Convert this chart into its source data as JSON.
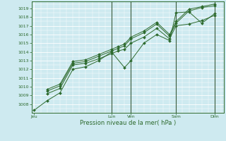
{
  "xlabel": "Pression niveau de la mer( hPa )",
  "ylim": [
    1007.0,
    1019.8
  ],
  "yticks": [
    1008,
    1009,
    1010,
    1011,
    1012,
    1013,
    1014,
    1015,
    1016,
    1017,
    1018,
    1019
  ],
  "background_color": "#ceeaf0",
  "grid_color": "#ffffff",
  "line_color": "#2d6a2d",
  "x_day_labels": [
    "Jeu",
    "Lun",
    "Ven",
    "Sam",
    "Dim"
  ],
  "x_day_positions": [
    0.0,
    3.0,
    3.75,
    5.5,
    7.0
  ],
  "series": [
    {
      "x": [
        0.0,
        0.5,
        1.0,
        1.5,
        2.0,
        2.5,
        3.0,
        3.5,
        3.75,
        4.25,
        4.75,
        5.25,
        5.5,
        6.0,
        6.5,
        7.0
      ],
      "y": [
        1007.3,
        1008.4,
        1009.3,
        1012.0,
        1012.3,
        1013.0,
        1014.0,
        1012.2,
        1013.0,
        1015.0,
        1016.0,
        1015.3,
        1018.5,
        1018.6,
        1017.3,
        1018.4
      ]
    },
    {
      "x": [
        0.5,
        1.0,
        1.5,
        2.0,
        2.5,
        3.0,
        3.25,
        3.5,
        3.75,
        4.25,
        4.75,
        5.25,
        5.5,
        6.0,
        6.5,
        7.0
      ],
      "y": [
        1009.2,
        1009.8,
        1012.5,
        1012.7,
        1013.2,
        1013.8,
        1014.1,
        1014.3,
        1015.0,
        1015.7,
        1016.7,
        1015.5,
        1017.0,
        1017.2,
        1017.6,
        1018.2
      ]
    },
    {
      "x": [
        0.5,
        1.0,
        1.5,
        2.0,
        2.5,
        3.0,
        3.25,
        3.5,
        3.75,
        4.25,
        4.75,
        5.25,
        5.5,
        6.0,
        6.5,
        7.0
      ],
      "y": [
        1009.5,
        1010.1,
        1012.7,
        1012.9,
        1013.5,
        1014.1,
        1014.4,
        1014.7,
        1015.5,
        1016.2,
        1017.2,
        1015.8,
        1017.3,
        1018.7,
        1019.1,
        1019.3
      ]
    },
    {
      "x": [
        0.5,
        1.0,
        1.5,
        2.0,
        2.5,
        3.0,
        3.25,
        3.5,
        3.75,
        4.25,
        4.75,
        5.25,
        5.5,
        6.0,
        6.5,
        7.0
      ],
      "y": [
        1009.7,
        1010.3,
        1012.9,
        1013.1,
        1013.7,
        1014.3,
        1014.6,
        1014.9,
        1015.7,
        1016.4,
        1017.4,
        1016.0,
        1017.5,
        1018.9,
        1019.2,
        1019.5
      ]
    }
  ],
  "x_vlines": [
    3.0,
    3.75,
    5.5,
    7.0
  ],
  "xlim": [
    -0.1,
    7.35
  ],
  "figsize": [
    3.2,
    2.0
  ],
  "dpi": 100
}
